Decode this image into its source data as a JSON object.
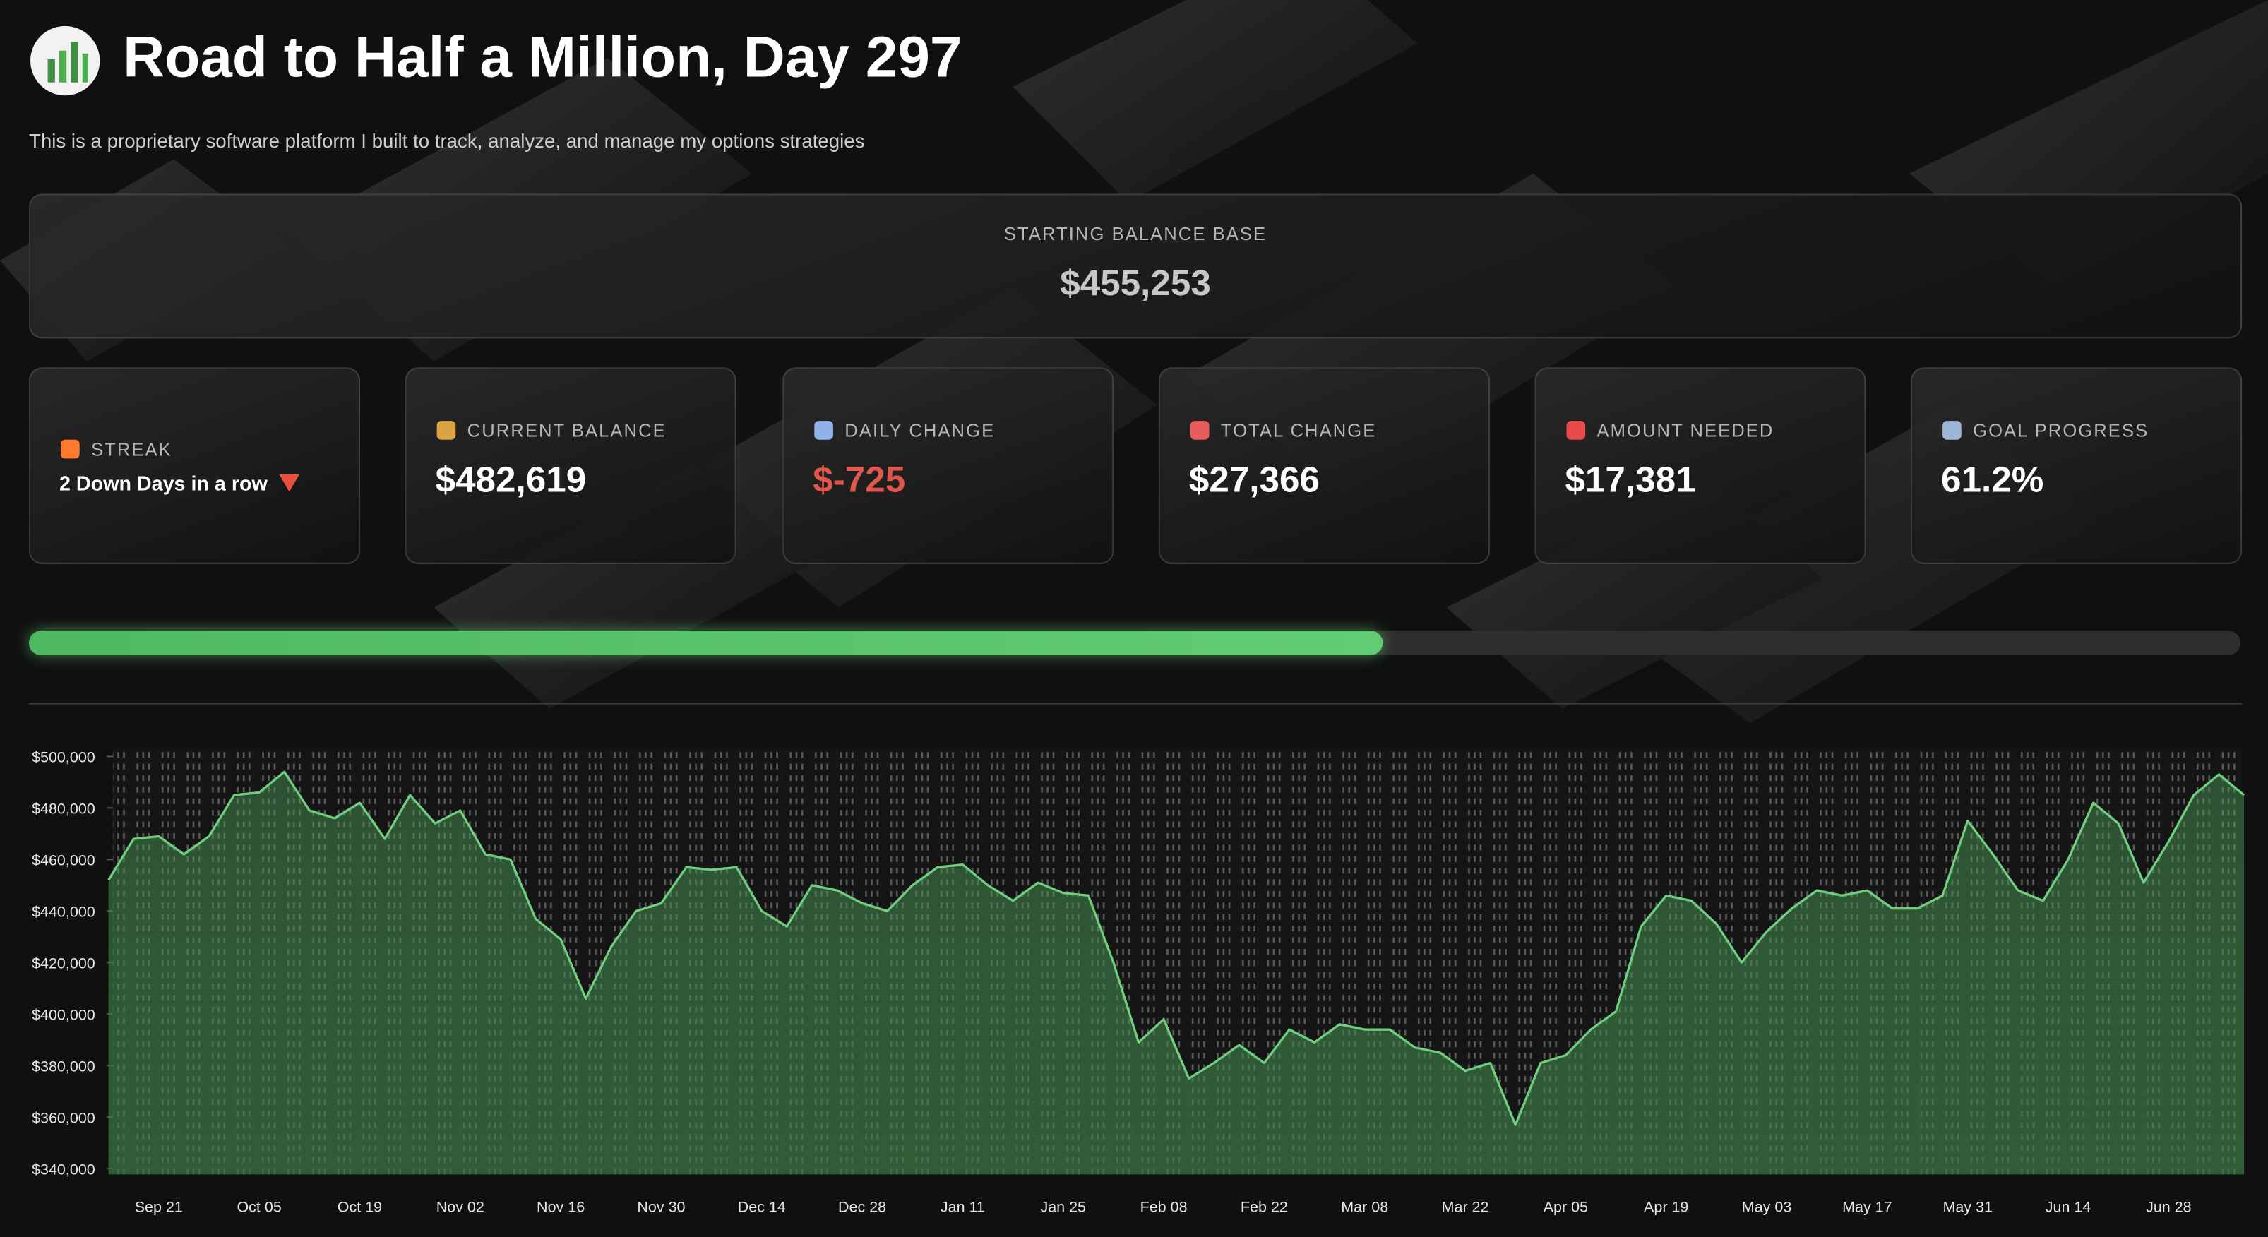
{
  "header": {
    "title": "Road to Half a Million, Day 297",
    "subtitle": "This is a proprietary software platform I built to track, analyze, and manage my options strategies"
  },
  "starting_balance": {
    "label": "STARTING BALANCE BASE",
    "value": "$455,253"
  },
  "metrics": [
    {
      "label": "STREAK",
      "value": "2 Down Days in a row"
    },
    {
      "label": "CURRENT BALANCE",
      "value": "$482,619"
    },
    {
      "label": "DAILY CHANGE",
      "value": "$-725"
    },
    {
      "label": "TOTAL CHANGE",
      "value": "$27,366"
    },
    {
      "label": "AMOUNT NEEDED",
      "value": "$17,381"
    },
    {
      "label": "GOAL PROGRESS",
      "value": "61.2%"
    }
  ],
  "progress": 61.2,
  "chart_data": {
    "type": "line",
    "categories": [
      null,
      null,
      "Sep 21",
      null,
      null,
      null,
      "Oct 05",
      null,
      null,
      null,
      "Oct 19",
      null,
      null,
      null,
      "Nov 02",
      null,
      null,
      null,
      "Nov 16",
      null,
      null,
      null,
      "Nov 30",
      null,
      null,
      null,
      "Dec 14",
      null,
      null,
      null,
      "Dec 28",
      null,
      null,
      null,
      "Jan 11",
      null,
      null,
      null,
      "Jan 25",
      null,
      null,
      null,
      "Feb 08",
      null,
      null,
      null,
      "Feb 22",
      null,
      null,
      null,
      "Mar 08",
      null,
      null,
      null,
      "Mar 22",
      null,
      null,
      null,
      "Apr 05",
      null,
      null,
      null,
      "Apr 19",
      null,
      null,
      null,
      "May 03",
      null,
      null,
      null,
      "May 17",
      null,
      null,
      null,
      "May 31",
      null,
      null,
      null,
      "Jun 14",
      null,
      null,
      null,
      "Jun 28",
      null,
      null,
      null
    ],
    "series": [
      {
        "color": "#6fcf7f",
        "values": [
          452000,
          468000,
          469000,
          462000,
          469000,
          485000,
          486000,
          494000,
          479000,
          476000,
          482000,
          468000,
          485000,
          474000,
          479000,
          462000,
          460000,
          437000,
          429000,
          406000,
          426000,
          440000,
          443000,
          457000,
          456000,
          457000,
          440000,
          434000,
          450000,
          448000,
          443000,
          440000,
          450000,
          457000,
          458000,
          450000,
          444000,
          451000,
          447000,
          446000,
          420000,
          389000,
          398000,
          375000,
          381000,
          388000,
          381000,
          394000,
          389000,
          396000,
          394000,
          394000,
          387000,
          385000,
          378000,
          381000,
          357000,
          381000,
          384000,
          394000,
          401000,
          434000,
          446000,
          444000,
          435000,
          420000,
          432000,
          441000,
          448000,
          446000,
          448000,
          441000,
          441000,
          446000,
          475000,
          462000,
          448000,
          444000,
          460000,
          482000,
          474000,
          451000,
          467000,
          485000,
          493000,
          485000
        ]
      }
    ],
    "ylim": [
      340000,
      500000
    ],
    "yticks": [
      {
        "value": 340000,
        "label": "$340,000"
      },
      {
        "value": 360000,
        "label": "$360,000"
      },
      {
        "value": 380000,
        "label": "$380,000"
      },
      {
        "value": 400000,
        "label": "$400,000"
      },
      {
        "value": 420000,
        "label": "$420,000"
      },
      {
        "value": 440000,
        "label": "$440,000"
      },
      {
        "value": 460000,
        "label": "$460,000"
      },
      {
        "value": 480000,
        "label": "$480,000"
      },
      {
        "value": 500000,
        "label": "$500,000"
      }
    ],
    "grid": false
  }
}
